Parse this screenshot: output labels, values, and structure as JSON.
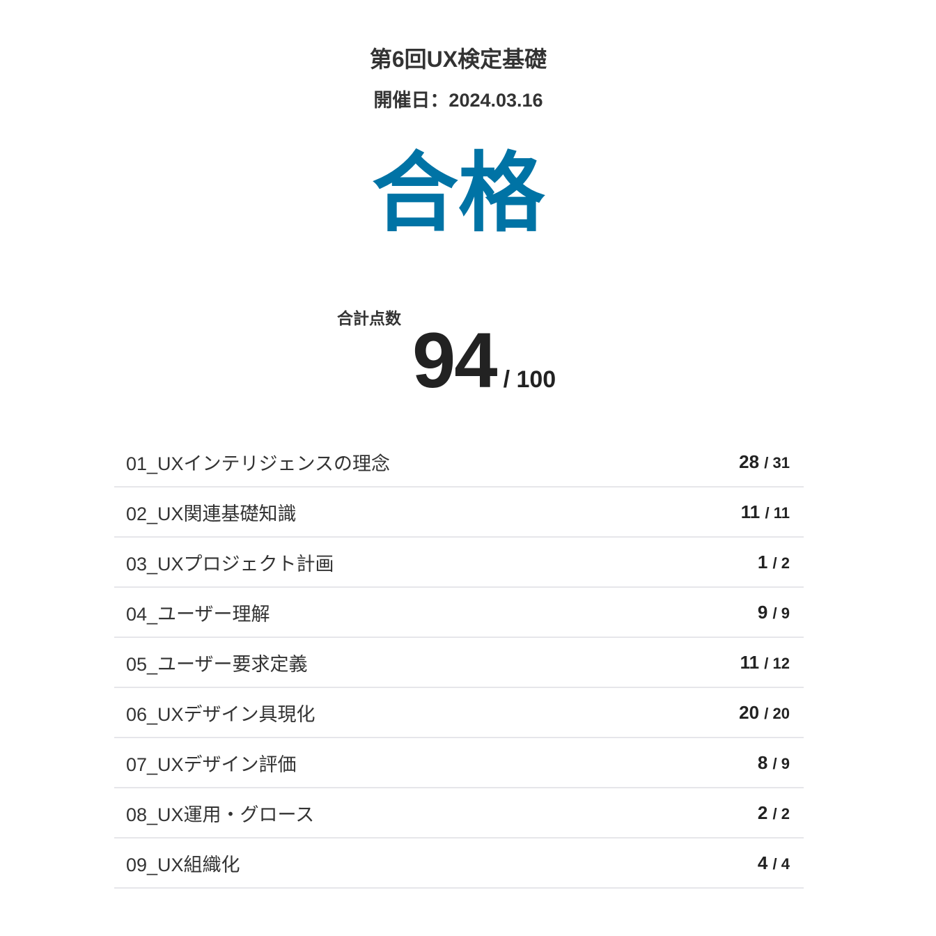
{
  "header": {
    "title": "第6回UX検定基礎",
    "date": "開催日：2024.03.16"
  },
  "result": {
    "label": "合格",
    "color": "#0073a5"
  },
  "total": {
    "label": "合計点数",
    "score": "94",
    "max": "/ 100"
  },
  "categories": [
    {
      "name": "01_UXインテリジェンスの理念",
      "score": "28",
      "max": "/ 31"
    },
    {
      "name": "02_UX関連基礎知識",
      "score": "11",
      "max": "/ 11"
    },
    {
      "name": "03_UXプロジェクト計画",
      "score": "1",
      "max": "/ 2"
    },
    {
      "name": "04_ユーザー理解",
      "score": "9",
      "max": "/ 9"
    },
    {
      "name": "05_ユーザー要求定義",
      "score": "11",
      "max": "/ 12"
    },
    {
      "name": "06_UXデザイン具現化",
      "score": "20",
      "max": "/ 20"
    },
    {
      "name": "07_UXデザイン評価",
      "score": "8",
      "max": "/ 9"
    },
    {
      "name": "08_UX運用・グロース",
      "score": "2",
      "max": "/ 2"
    },
    {
      "name": "09_UX組織化",
      "score": "4",
      "max": "/ 4"
    }
  ]
}
